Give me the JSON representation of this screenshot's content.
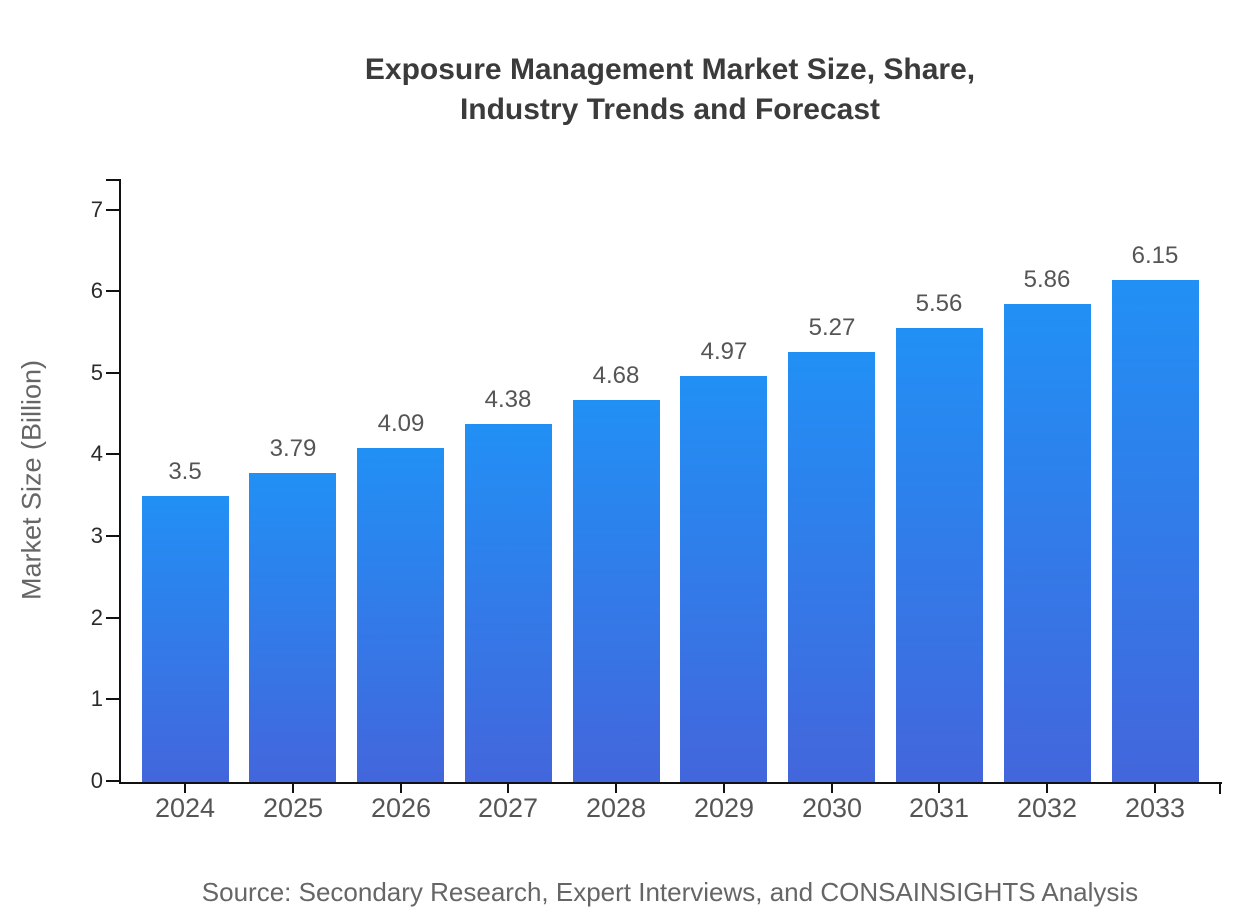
{
  "title": {
    "line1": "Exposure Management Market Size, Share,",
    "line2": "Industry Trends and Forecast"
  },
  "source": "Source: Secondary Research, Expert Interviews, and CONSAINSIGHTS Analysis",
  "y_axis": {
    "label": "Market Size (Billion)",
    "ticks": [
      0,
      1,
      2,
      3,
      4,
      5,
      6,
      7
    ]
  },
  "colors": {
    "bar_gradient_top": "#2190f5",
    "bar_gradient_bottom": "#4366dc",
    "axis": "#111111",
    "title_text": "#3b3b3b",
    "tick_text": "#2b2b2b",
    "label_text": "#555555",
    "muted_text": "#666666"
  },
  "chart_data": {
    "type": "bar",
    "title": "Exposure Management Market Size, Share, Industry Trends and Forecast",
    "categories": [
      "2024",
      "2025",
      "2026",
      "2027",
      "2028",
      "2029",
      "2030",
      "2031",
      "2032",
      "2033"
    ],
    "values": [
      3.5,
      3.79,
      4.09,
      4.38,
      4.68,
      4.97,
      5.27,
      5.56,
      5.86,
      6.15
    ],
    "value_labels": [
      "3.5",
      "3.79",
      "4.09",
      "4.38",
      "4.68",
      "4.97",
      "5.27",
      "5.56",
      "5.86",
      "6.15"
    ],
    "xlabel": "",
    "ylabel": "Market Size (Billion)",
    "ylim": [
      0,
      7
    ],
    "grid": false,
    "legend": null
  }
}
